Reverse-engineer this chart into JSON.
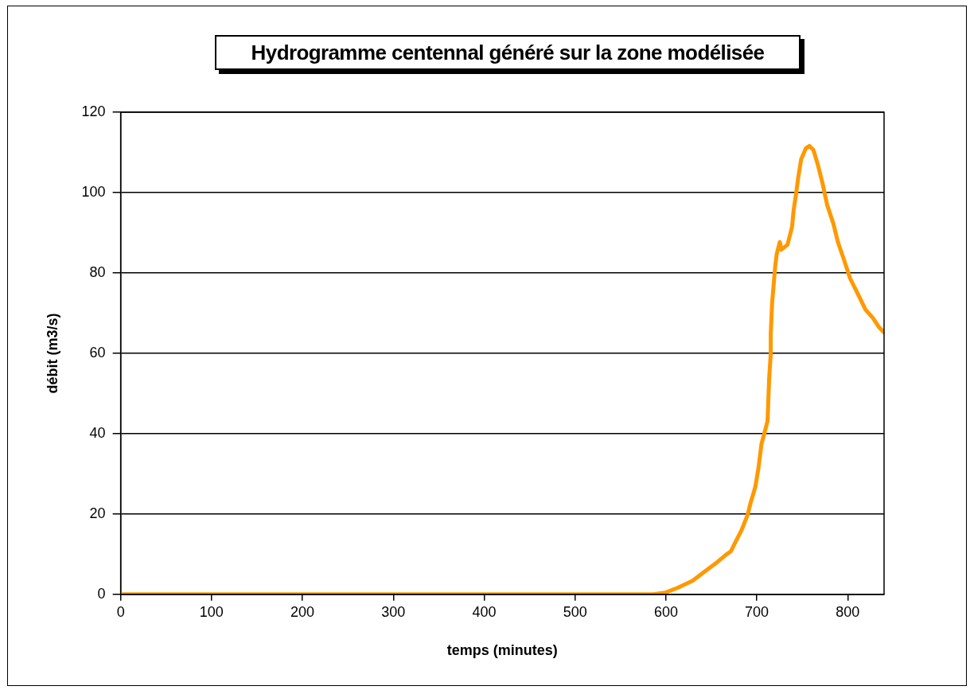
{
  "chart_data": {
    "type": "line",
    "title": "Hydrogramme centennal généré sur la zone modélisée",
    "xlabel": "temps (minutes)",
    "ylabel": "débit (m3/s)",
    "x": [
      0,
      585.5,
      599,
      612.5,
      629.3,
      642.8,
      656.3,
      666.3,
      671.4,
      674.7,
      683.2,
      689.9,
      693.3,
      698.3,
      701.7,
      705.1,
      711.8,
      713.5,
      715.2,
      715.3,
      716.8,
      720.2,
      721.9,
      725.3,
      727,
      733.7,
      738.8,
      740.4,
      743.8,
      745.5,
      748.8,
      753.9,
      757.9,
      762.3,
      767.3,
      772.4,
      777.4,
      784.2,
      789.2,
      796,
      802.7,
      811.1,
      819.5,
      827.9,
      834.7,
      840
    ],
    "values": [
      0,
      0,
      0.4,
      1.6,
      3.4,
      5.7,
      8,
      9.9,
      10.7,
      12.2,
      16,
      19.8,
      22.9,
      26.7,
      31.3,
      37.4,
      43.1,
      53.4,
      59.5,
      64.8,
      72.5,
      81.6,
      84.7,
      87.7,
      85.8,
      87,
      91.5,
      95.4,
      100.7,
      103.7,
      108.3,
      111,
      111.6,
      110.6,
      106.8,
      102.2,
      96.9,
      92.3,
      87.7,
      83.2,
      78.6,
      74.8,
      70.9,
      68.7,
      66.4,
      65.2
    ],
    "color": "#ff9900",
    "xlim": [
      0,
      840
    ],
    "xticks": [
      0,
      100,
      200,
      300,
      400,
      500,
      600,
      700,
      800
    ],
    "ylim": [
      0,
      120
    ],
    "yticks": [
      0,
      20,
      40,
      60,
      80,
      100,
      120
    ],
    "grid": "y"
  }
}
